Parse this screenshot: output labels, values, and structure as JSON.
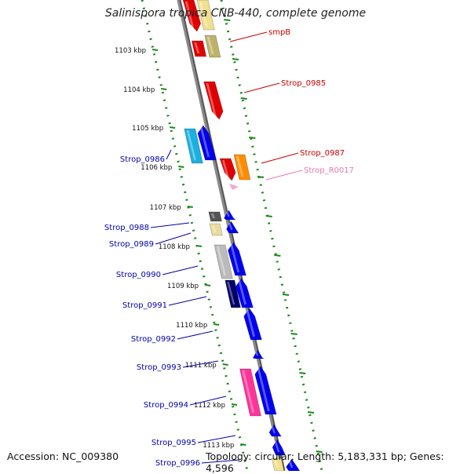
{
  "title": "Salinispora tropica CNB-440, complete genome",
  "accession": "Accession: NC_009380",
  "summary": "Topology: circular; Length: 5,183,331 bp; Genes: 4,596",
  "colors": {
    "backbone": "#8a8a8a",
    "ruler": "#1a8a1a",
    "forward_label": "#cc0000",
    "reverse_label": "#0000aa",
    "rna_label": "#e57ab0"
  },
  "ruler_ticks": [
    "1103 kbp",
    "1104 kbp",
    "1105 kbp",
    "1106 kbp",
    "1107 kbp",
    "1108 kbp",
    "1109 kbp",
    "1110 kbp",
    "1111 kbp",
    "1112 kbp",
    "1113 kbp"
  ],
  "forward_labels": [
    "smpB",
    "Strop_0985",
    "Strop_0987",
    "Strop_R0017"
  ],
  "reverse_labels": [
    "Strop_0986",
    "Strop_0988",
    "Strop_0989",
    "Strop_0990",
    "Strop_0991",
    "Strop_0992",
    "Strop_0993",
    "Strop_0994",
    "Strop_0995",
    "Strop_0996"
  ]
}
